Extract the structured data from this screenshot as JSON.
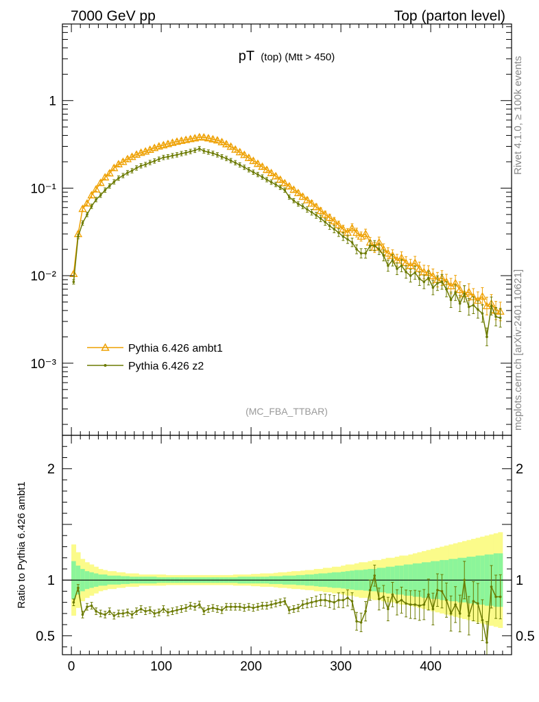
{
  "header": {
    "left_label": "7000 GeV pp",
    "right_label": "Top (parton level)"
  },
  "side_labels": {
    "rivet": "Rivet 4.1.0, ≥ 100k events",
    "mcplots": "mcplots.cern.ch [arXiv:2401.10621]"
  },
  "colors": {
    "ambt1": "#eea000",
    "z2": "#6b7a00",
    "band_inner": "#8cf59a",
    "band_outer": "#fbfb8a"
  },
  "chart_data": {
    "type": "line",
    "title": "pT",
    "title_sub": "(top) (Mtt > 450)",
    "analysis_tag": "(MC_FBA_TTBAR)",
    "xlim": [
      -10,
      490
    ],
    "x_ticks": [
      0,
      100,
      200,
      300,
      400
    ],
    "main": {
      "yscale": "log",
      "ylim": [
        0.00015,
        7.5
      ],
      "y_ticks": [
        {
          "value": 1,
          "label": "1"
        },
        {
          "value": 0.1,
          "label": "10⁻¹"
        },
        {
          "value": 0.01,
          "label": "10⁻²"
        },
        {
          "value": 0.001,
          "label": "10⁻³"
        }
      ]
    },
    "ratio": {
      "ylabel": "Ratio to Pythia 6.426 ambt1",
      "ylim": [
        0.33,
        2.3
      ],
      "y_ticks": [
        0.5,
        1,
        2
      ],
      "tick_labels": [
        "0.5",
        "1",
        "2"
      ]
    },
    "legend": [
      "Pythia 6.426 ambt1",
      "Pythia 6.426 z2"
    ],
    "legend_position": "lower-left",
    "bin_width": 5,
    "x": [
      2.5,
      7.5,
      12.5,
      17.5,
      22.5,
      27.5,
      32.5,
      37.5,
      42.5,
      47.5,
      52.5,
      57.5,
      62.5,
      67.5,
      72.5,
      77.5,
      82.5,
      87.5,
      92.5,
      97.5,
      102.5,
      107.5,
      112.5,
      117.5,
      122.5,
      127.5,
      132.5,
      137.5,
      142.5,
      147.5,
      152.5,
      157.5,
      162.5,
      167.5,
      172.5,
      177.5,
      182.5,
      187.5,
      192.5,
      197.5,
      202.5,
      207.5,
      212.5,
      217.5,
      222.5,
      227.5,
      232.5,
      237.5,
      242.5,
      247.5,
      252.5,
      257.5,
      262.5,
      267.5,
      272.5,
      277.5,
      282.5,
      287.5,
      292.5,
      297.5,
      302.5,
      307.5,
      312.5,
      317.5,
      322.5,
      327.5,
      332.5,
      337.5,
      342.5,
      347.5,
      352.5,
      357.5,
      362.5,
      367.5,
      372.5,
      377.5,
      382.5,
      387.5,
      392.5,
      397.5,
      402.5,
      407.5,
      412.5,
      417.5,
      422.5,
      427.5,
      432.5,
      437.5,
      442.5,
      447.5,
      452.5,
      457.5,
      462.5,
      467.5,
      472.5,
      477.5
    ],
    "series": [
      {
        "name": "Pythia 6.426 ambt1",
        "values": [
          0.0105,
          0.03,
          0.058,
          0.067,
          0.083,
          0.097,
          0.115,
          0.133,
          0.148,
          0.17,
          0.188,
          0.2,
          0.215,
          0.228,
          0.242,
          0.254,
          0.263,
          0.275,
          0.288,
          0.3,
          0.31,
          0.32,
          0.33,
          0.34,
          0.348,
          0.356,
          0.364,
          0.372,
          0.382,
          0.38,
          0.372,
          0.362,
          0.352,
          0.336,
          0.318,
          0.298,
          0.276,
          0.258,
          0.24,
          0.222,
          0.205,
          0.19,
          0.176,
          0.162,
          0.149,
          0.137,
          0.125,
          0.114,
          0.105,
          0.096,
          0.088,
          0.08,
          0.073,
          0.067,
          0.061,
          0.055,
          0.05,
          0.046,
          0.042,
          0.038,
          0.034,
          0.031,
          0.035,
          0.031,
          0.028,
          0.03,
          0.024,
          0.021,
          0.024,
          0.02,
          0.018,
          0.017,
          0.015,
          0.016,
          0.014,
          0.013,
          0.014,
          0.012,
          0.011,
          0.0108,
          0.0099,
          0.009,
          0.0094,
          0.0085,
          0.0076,
          0.0082,
          0.0069,
          0.0062,
          0.0065,
          0.0057,
          0.0052,
          0.0058,
          0.0045,
          0.0048,
          0.004,
          0.0039
        ]
      },
      {
        "name": "Pythia 6.426 z2",
        "values": [
          0.0085,
          0.028,
          0.04,
          0.05,
          0.062,
          0.074,
          0.083,
          0.095,
          0.106,
          0.118,
          0.13,
          0.139,
          0.15,
          0.158,
          0.17,
          0.18,
          0.186,
          0.196,
          0.204,
          0.214,
          0.224,
          0.228,
          0.235,
          0.24,
          0.248,
          0.254,
          0.262,
          0.27,
          0.282,
          0.266,
          0.258,
          0.25,
          0.24,
          0.228,
          0.218,
          0.206,
          0.195,
          0.184,
          0.173,
          0.162,
          0.152,
          0.143,
          0.134,
          0.125,
          0.117,
          0.11,
          0.102,
          0.095,
          0.079,
          0.072,
          0.066,
          0.062,
          0.057,
          0.053,
          0.049,
          0.045,
          0.041,
          0.037,
          0.034,
          0.031,
          0.028,
          0.026,
          0.024,
          0.02,
          0.018,
          0.018,
          0.022,
          0.022,
          0.02,
          0.017,
          0.013,
          0.015,
          0.012,
          0.013,
          0.011,
          0.01,
          0.0108,
          0.0092,
          0.0085,
          0.0094,
          0.0073,
          0.0082,
          0.0085,
          0.007,
          0.0053,
          0.0064,
          0.0048,
          0.0062,
          0.0044,
          0.0046,
          0.0041,
          0.0037,
          0.002,
          0.0045,
          0.0034,
          0.0033
        ]
      }
    ],
    "ratio_values": [
      0.8,
      0.93,
      0.69,
      0.76,
      0.77,
      0.72,
      0.7,
      0.69,
      0.72,
      0.68,
      0.7,
      0.7,
      0.71,
      0.69,
      0.72,
      0.74,
      0.72,
      0.73,
      0.7,
      0.71,
      0.74,
      0.71,
      0.72,
      0.73,
      0.74,
      0.75,
      0.77,
      0.76,
      0.78,
      0.72,
      0.74,
      0.75,
      0.74,
      0.73,
      0.76,
      0.76,
      0.76,
      0.76,
      0.75,
      0.76,
      0.75,
      0.76,
      0.77,
      0.77,
      0.78,
      0.79,
      0.8,
      0.81,
      0.73,
      0.74,
      0.75,
      0.78,
      0.79,
      0.8,
      0.81,
      0.82,
      0.82,
      0.81,
      0.8,
      0.82,
      0.82,
      0.84,
      0.81,
      0.63,
      0.62,
      0.72,
      0.91,
      1.04,
      0.83,
      0.85,
      0.74,
      0.87,
      0.8,
      0.82,
      0.79,
      0.78,
      0.78,
      0.77,
      0.78,
      0.87,
      0.74,
      0.91,
      0.9,
      0.82,
      0.7,
      0.78,
      0.7,
      1.0,
      0.68,
      0.81,
      0.79,
      0.64,
      0.44,
      0.94,
      0.85,
      0.85
    ],
    "band_inner_halfwidth": [
      0.17,
      0.13,
      0.1,
      0.08,
      0.07,
      0.06,
      0.05,
      0.05,
      0.04,
      0.04,
      0.04,
      0.035,
      0.035,
      0.03,
      0.03,
      0.03,
      0.03,
      0.03,
      0.03,
      0.025,
      0.025,
      0.025,
      0.025,
      0.025,
      0.025,
      0.025,
      0.025,
      0.025,
      0.025,
      0.025,
      0.025,
      0.025,
      0.025,
      0.025,
      0.025,
      0.025,
      0.025,
      0.03,
      0.03,
      0.03,
      0.03,
      0.03,
      0.03,
      0.03,
      0.035,
      0.035,
      0.035,
      0.04,
      0.04,
      0.04,
      0.045,
      0.045,
      0.05,
      0.05,
      0.055,
      0.06,
      0.06,
      0.065,
      0.07,
      0.07,
      0.075,
      0.08,
      0.085,
      0.09,
      0.09,
      0.095,
      0.1,
      0.1,
      0.11,
      0.11,
      0.12,
      0.12,
      0.13,
      0.13,
      0.14,
      0.14,
      0.15,
      0.15,
      0.16,
      0.16,
      0.17,
      0.17,
      0.18,
      0.18,
      0.19,
      0.19,
      0.2,
      0.2,
      0.21,
      0.21,
      0.22,
      0.22,
      0.23,
      0.23,
      0.24,
      0.24
    ],
    "band_outer_halfwidth": [
      0.32,
      0.25,
      0.19,
      0.16,
      0.14,
      0.12,
      0.1,
      0.09,
      0.08,
      0.08,
      0.07,
      0.07,
      0.06,
      0.06,
      0.06,
      0.05,
      0.05,
      0.05,
      0.05,
      0.05,
      0.05,
      0.045,
      0.045,
      0.045,
      0.045,
      0.045,
      0.045,
      0.045,
      0.045,
      0.045,
      0.045,
      0.045,
      0.045,
      0.045,
      0.045,
      0.045,
      0.05,
      0.05,
      0.05,
      0.05,
      0.055,
      0.055,
      0.06,
      0.06,
      0.06,
      0.065,
      0.07,
      0.07,
      0.075,
      0.08,
      0.08,
      0.085,
      0.09,
      0.09,
      0.1,
      0.1,
      0.11,
      0.11,
      0.12,
      0.12,
      0.13,
      0.14,
      0.14,
      0.15,
      0.16,
      0.16,
      0.17,
      0.18,
      0.18,
      0.19,
      0.2,
      0.2,
      0.21,
      0.22,
      0.22,
      0.23,
      0.24,
      0.25,
      0.26,
      0.27,
      0.28,
      0.29,
      0.3,
      0.31,
      0.32,
      0.33,
      0.34,
      0.35,
      0.36,
      0.37,
      0.38,
      0.39,
      0.4,
      0.41,
      0.42,
      0.43
    ]
  }
}
